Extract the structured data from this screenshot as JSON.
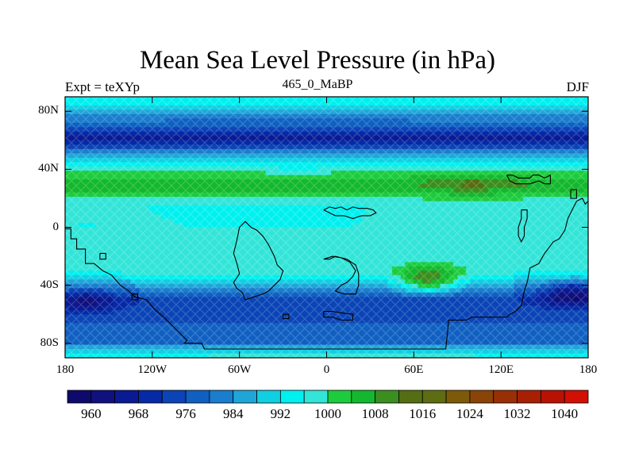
{
  "title": "Mean Sea Level Pressure (in hPa)",
  "subtitle_left": "Expt = teXYp",
  "subtitle_center": "465_0_MaBP",
  "subtitle_right": "DJF",
  "chart_data": {
    "type": "heatmap",
    "projection": "cylindrical-equidistant",
    "variable": "Mean Sea Level Pressure",
    "units": "hPa",
    "season": "DJF",
    "lon_range": [
      -180,
      180
    ],
    "lat_range": [
      -90,
      90
    ],
    "x_ticks": [
      {
        "value": -180,
        "label": "180"
      },
      {
        "value": -120,
        "label": "120W"
      },
      {
        "value": -60,
        "label": "60W"
      },
      {
        "value": 0,
        "label": "0"
      },
      {
        "value": 60,
        "label": "60E"
      },
      {
        "value": 120,
        "label": "120E"
      },
      {
        "value": 180,
        "label": "180"
      }
    ],
    "y_ticks": [
      {
        "value": 80,
        "label": "80N"
      },
      {
        "value": 40,
        "label": "40N"
      },
      {
        "value": 0,
        "label": "0"
      },
      {
        "value": -40,
        "label": "40S"
      },
      {
        "value": -80,
        "label": "80S"
      }
    ],
    "colorbar": {
      "levels": [
        956,
        960,
        964,
        968,
        972,
        976,
        980,
        984,
        988,
        992,
        996,
        1000,
        1004,
        1008,
        1012,
        1016,
        1020,
        1024,
        1028,
        1032,
        1036,
        1040,
        1044
      ],
      "labels": [
        "960",
        "968",
        "976",
        "984",
        "992",
        "1000",
        "1008",
        "1016",
        "1024",
        "1032",
        "1040"
      ],
      "label_values": [
        960,
        968,
        976,
        984,
        992,
        1000,
        1008,
        1016,
        1024,
        1032,
        1040
      ],
      "colors": [
        "#0d0a6b",
        "#10107f",
        "#0a1a92",
        "#0629a6",
        "#0a44b6",
        "#1060c2",
        "#1a7dcd",
        "#1fa6d9",
        "#11cfe3",
        "#00f0f0",
        "#33e5d8",
        "#1dcc3d",
        "#14b82e",
        "#3a8f1e",
        "#556e13",
        "#5f6d12",
        "#7c5a0a",
        "#8a4408",
        "#993005",
        "#a82004",
        "#b81203",
        "#d10f03"
      ]
    },
    "pressure_field_bands": [
      {
        "lat": 85,
        "value": 994
      },
      {
        "lat": 62,
        "value": 966
      },
      {
        "lat": 45,
        "value": 992
      },
      {
        "lat": 30,
        "value": 1009
      },
      {
        "lat": 15,
        "value": 996
      },
      {
        "lat": 0,
        "value": 996
      },
      {
        "lat": -30,
        "value": 998
      },
      {
        "lat": -50,
        "value": 972
      },
      {
        "lat": -80,
        "value": 980
      },
      {
        "lat": -88,
        "value": 996
      }
    ],
    "pressure_field_features": [
      {
        "lon": 100,
        "lat": 30,
        "value": 1014
      },
      {
        "lon": 70,
        "lat": -37,
        "value": 1009
      },
      {
        "lon": -20,
        "lat": 40,
        "value": 996
      },
      {
        "lon": -165,
        "lat": -50,
        "value": 962
      },
      {
        "lon": 170,
        "lat": -45,
        "value": 962
      }
    ],
    "coastlines": [
      [
        [
          -180,
          -1
        ],
        [
          -176,
          -1
        ],
        [
          -176,
          -8
        ],
        [
          -172,
          -8
        ],
        [
          -172,
          -15
        ],
        [
          -166,
          -15
        ],
        [
          -166,
          -25
        ],
        [
          -160,
          -25
        ],
        [
          -154,
          -30
        ],
        [
          -148,
          -33
        ],
        [
          -142,
          -40
        ],
        [
          -136,
          -44
        ],
        [
          -132,
          -48
        ],
        [
          -124,
          -50
        ],
        [
          -118,
          -57
        ],
        [
          -112,
          -62
        ],
        [
          -108,
          -66
        ],
        [
          -102,
          -72
        ],
        [
          -96,
          -78
        ],
        [
          -98,
          -80
        ],
        [
          -86,
          -80
        ],
        [
          -84,
          -84
        ],
        [
          -70,
          -84
        ],
        [
          -48,
          -84
        ],
        [
          -28,
          -84
        ],
        [
          -20,
          -84
        ],
        [
          2,
          -84
        ],
        [
          20,
          -84
        ],
        [
          44,
          -84
        ],
        [
          60,
          -84
        ],
        [
          76,
          -84
        ],
        [
          82,
          -84
        ],
        [
          84,
          -64
        ],
        [
          96,
          -64
        ],
        [
          100,
          -62
        ],
        [
          112,
          -62
        ],
        [
          124,
          -62
        ],
        [
          126,
          -60
        ],
        [
          130,
          -58
        ],
        [
          134,
          -54
        ],
        [
          136,
          -44
        ],
        [
          138,
          -38
        ],
        [
          140,
          -28
        ],
        [
          146,
          -25
        ],
        [
          150,
          -18
        ],
        [
          156,
          -10
        ],
        [
          160,
          -8
        ],
        [
          164,
          -2
        ],
        [
          166,
          6
        ],
        [
          170,
          14
        ],
        [
          172,
          18
        ],
        [
          176,
          20
        ],
        [
          178,
          16
        ],
        [
          180,
          18
        ]
      ],
      [
        [
          -60,
          0
        ],
        [
          -56,
          4
        ],
        [
          -52,
          0
        ],
        [
          -48,
          -2
        ],
        [
          -44,
          -6
        ],
        [
          -40,
          -12
        ],
        [
          -36,
          -20
        ],
        [
          -34,
          -26
        ],
        [
          -30,
          -30
        ],
        [
          -32,
          -36
        ],
        [
          -36,
          -40
        ],
        [
          -40,
          -44
        ],
        [
          -44,
          -46
        ],
        [
          -50,
          -48
        ],
        [
          -56,
          -50
        ],
        [
          -58,
          -45
        ],
        [
          -62,
          -42
        ],
        [
          -64,
          -38
        ],
        [
          -60,
          -32
        ],
        [
          -62,
          -24
        ],
        [
          -64,
          -18
        ],
        [
          -62,
          -10
        ],
        [
          -60,
          0
        ]
      ],
      [
        [
          -2,
          -22
        ],
        [
          4,
          -20
        ],
        [
          10,
          -21
        ],
        [
          16,
          -24
        ],
        [
          20,
          -30
        ],
        [
          18,
          -34
        ],
        [
          14,
          -38
        ],
        [
          10,
          -40
        ],
        [
          6,
          -44
        ],
        [
          12,
          -46
        ],
        [
          20,
          -46
        ],
        [
          22,
          -40
        ],
        [
          22,
          -32
        ],
        [
          20,
          -26
        ],
        [
          14,
          -22
        ],
        [
          6,
          -20
        ],
        [
          2,
          -22
        ],
        [
          -2,
          -22
        ]
      ],
      [
        [
          -2,
          -58
        ],
        [
          4,
          -58
        ],
        [
          10,
          -59
        ],
        [
          18,
          -60
        ],
        [
          18,
          -64
        ],
        [
          10,
          -64
        ],
        [
          4,
          -62
        ],
        [
          -2,
          -62
        ],
        [
          -2,
          -58
        ]
      ],
      [
        [
          -2,
          12
        ],
        [
          2,
          14
        ],
        [
          6,
          13
        ],
        [
          10,
          14
        ],
        [
          14,
          12
        ],
        [
          18,
          14
        ],
        [
          22,
          13
        ],
        [
          28,
          13
        ],
        [
          32,
          12
        ],
        [
          34,
          10
        ],
        [
          30,
          8
        ],
        [
          24,
          8
        ],
        [
          18,
          6
        ],
        [
          12,
          8
        ],
        [
          6,
          8
        ],
        [
          2,
          10
        ],
        [
          -2,
          12
        ]
      ],
      [
        [
          124,
          36
        ],
        [
          128,
          36
        ],
        [
          132,
          34
        ],
        [
          136,
          34
        ],
        [
          140,
          34
        ],
        [
          142,
          36
        ],
        [
          146,
          36
        ],
        [
          150,
          34
        ],
        [
          154,
          36
        ],
        [
          154,
          30
        ],
        [
          150,
          30
        ],
        [
          146,
          32
        ],
        [
          140,
          30
        ],
        [
          136,
          30
        ],
        [
          130,
          30
        ],
        [
          126,
          32
        ],
        [
          124,
          36
        ]
      ],
      [
        [
          134,
          12
        ],
        [
          138,
          12
        ],
        [
          138,
          6
        ],
        [
          136,
          0
        ],
        [
          136,
          -6
        ],
        [
          134,
          -10
        ],
        [
          132,
          -6
        ],
        [
          132,
          0
        ],
        [
          134,
          6
        ],
        [
          134,
          12
        ]
      ],
      [
        [
          168,
          26
        ],
        [
          172,
          26
        ],
        [
          172,
          20
        ],
        [
          168,
          20
        ],
        [
          168,
          26
        ]
      ],
      [
        [
          -156,
          -18
        ],
        [
          -152,
          -18
        ],
        [
          -152,
          -22
        ],
        [
          -156,
          -22
        ],
        [
          -156,
          -18
        ]
      ],
      [
        [
          -134,
          -46
        ],
        [
          -130,
          -46
        ],
        [
          -130,
          -50
        ],
        [
          -134,
          -50
        ],
        [
          -134,
          -46
        ]
      ],
      [
        [
          -30,
          -60
        ],
        [
          -26,
          -60
        ],
        [
          -26,
          -63
        ],
        [
          -30,
          -63
        ],
        [
          -30,
          -60
        ]
      ]
    ]
  }
}
